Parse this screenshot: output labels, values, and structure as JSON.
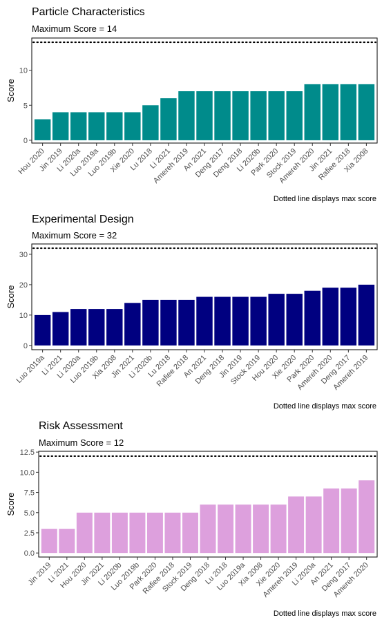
{
  "caption": "Dotted line displays max score",
  "chart_data": [
    {
      "type": "bar",
      "title": "Particle Characteristics",
      "subtitle": "Maximum Score = 14",
      "ylabel": "Score",
      "xlabel": "",
      "color": "#008B8B",
      "max_score": 14,
      "ylim": [
        -0.4,
        14.6
      ],
      "yticks": [
        0,
        5,
        10
      ],
      "ytick_labels": [
        "0",
        "5",
        "10"
      ],
      "grid": false,
      "categories": [
        "Hou 2020",
        "Jin 2019",
        "Li 2020a",
        "Luo 2019a",
        "Luo 2019b",
        "Xie 2020",
        "Lu 2018",
        "Li 2021",
        "Amereh 2019",
        "An 2021",
        "Deng 2017",
        "Deng 2018",
        "Li 2020b",
        "Park 2020",
        "Stock 2019",
        "Amereh 2020",
        "Jin 2021",
        "Rafiee 2018",
        "Xia 2008"
      ],
      "values": [
        3,
        4,
        4,
        4,
        4,
        4,
        5,
        6,
        7,
        7,
        7,
        7,
        7,
        7,
        7,
        8,
        8,
        8,
        8
      ]
    },
    {
      "type": "bar",
      "title": "Experimental Design",
      "subtitle": "Maximum Score = 32",
      "ylabel": "Score",
      "xlabel": "",
      "color": "#000080",
      "max_score": 32,
      "ylim": [
        -1.4,
        33.4
      ],
      "yticks": [
        0,
        10,
        20,
        30
      ],
      "ytick_labels": [
        "0",
        "10",
        "20",
        "30"
      ],
      "grid": false,
      "categories": [
        "Luo 2019a",
        "Li 2021",
        "Li 2020a",
        "Luo 2019b",
        "Xia 2008",
        "Jin 2021",
        "Li 2020b",
        "Lu 2018",
        "Rafiee 2018",
        "An 2021",
        "Deng 2018",
        "Jin 2019",
        "Stock 2019",
        "Hou 2020",
        "Xie 2020",
        "Park 2020",
        "Amereh 2020",
        "Deng 2017",
        "Amereh 2019"
      ],
      "values": [
        10,
        11,
        12,
        12,
        12,
        14,
        15,
        15,
        15,
        16,
        16,
        16,
        16,
        17,
        17,
        18,
        19,
        19,
        20
      ]
    },
    {
      "type": "bar",
      "title": "Risk Assessment",
      "subtitle": "Maximum Score = 12",
      "ylabel": "Score",
      "xlabel": "",
      "color": "#DDA0DD",
      "max_score": 12,
      "ylim": [
        -0.5,
        12.6
      ],
      "yticks": [
        0,
        2.5,
        5,
        7.5,
        10,
        12.5
      ],
      "ytick_labels": [
        "0.0",
        "2.5",
        "5.0",
        "7.5",
        "10.0",
        "12.5"
      ],
      "grid": false,
      "categories": [
        "Jin 2019",
        "Li 2021",
        "Hou 2020",
        "Jin 2021",
        "Li 2020b",
        "Luo 2019b",
        "Park 2020",
        "Rafiee 2018",
        "Stock 2019",
        "Deng 2018",
        "Lu 2018",
        "Luo 2019a",
        "Xia 2008",
        "Xie 2020",
        "Amereh 2019",
        "Li 2020a",
        "An 2021",
        "Deng 2017",
        "Amereh 2020"
      ],
      "values": [
        3,
        3,
        5,
        5,
        5,
        5,
        5,
        5,
        5,
        6,
        6,
        6,
        6,
        6,
        7,
        7,
        8,
        8,
        9
      ]
    }
  ]
}
